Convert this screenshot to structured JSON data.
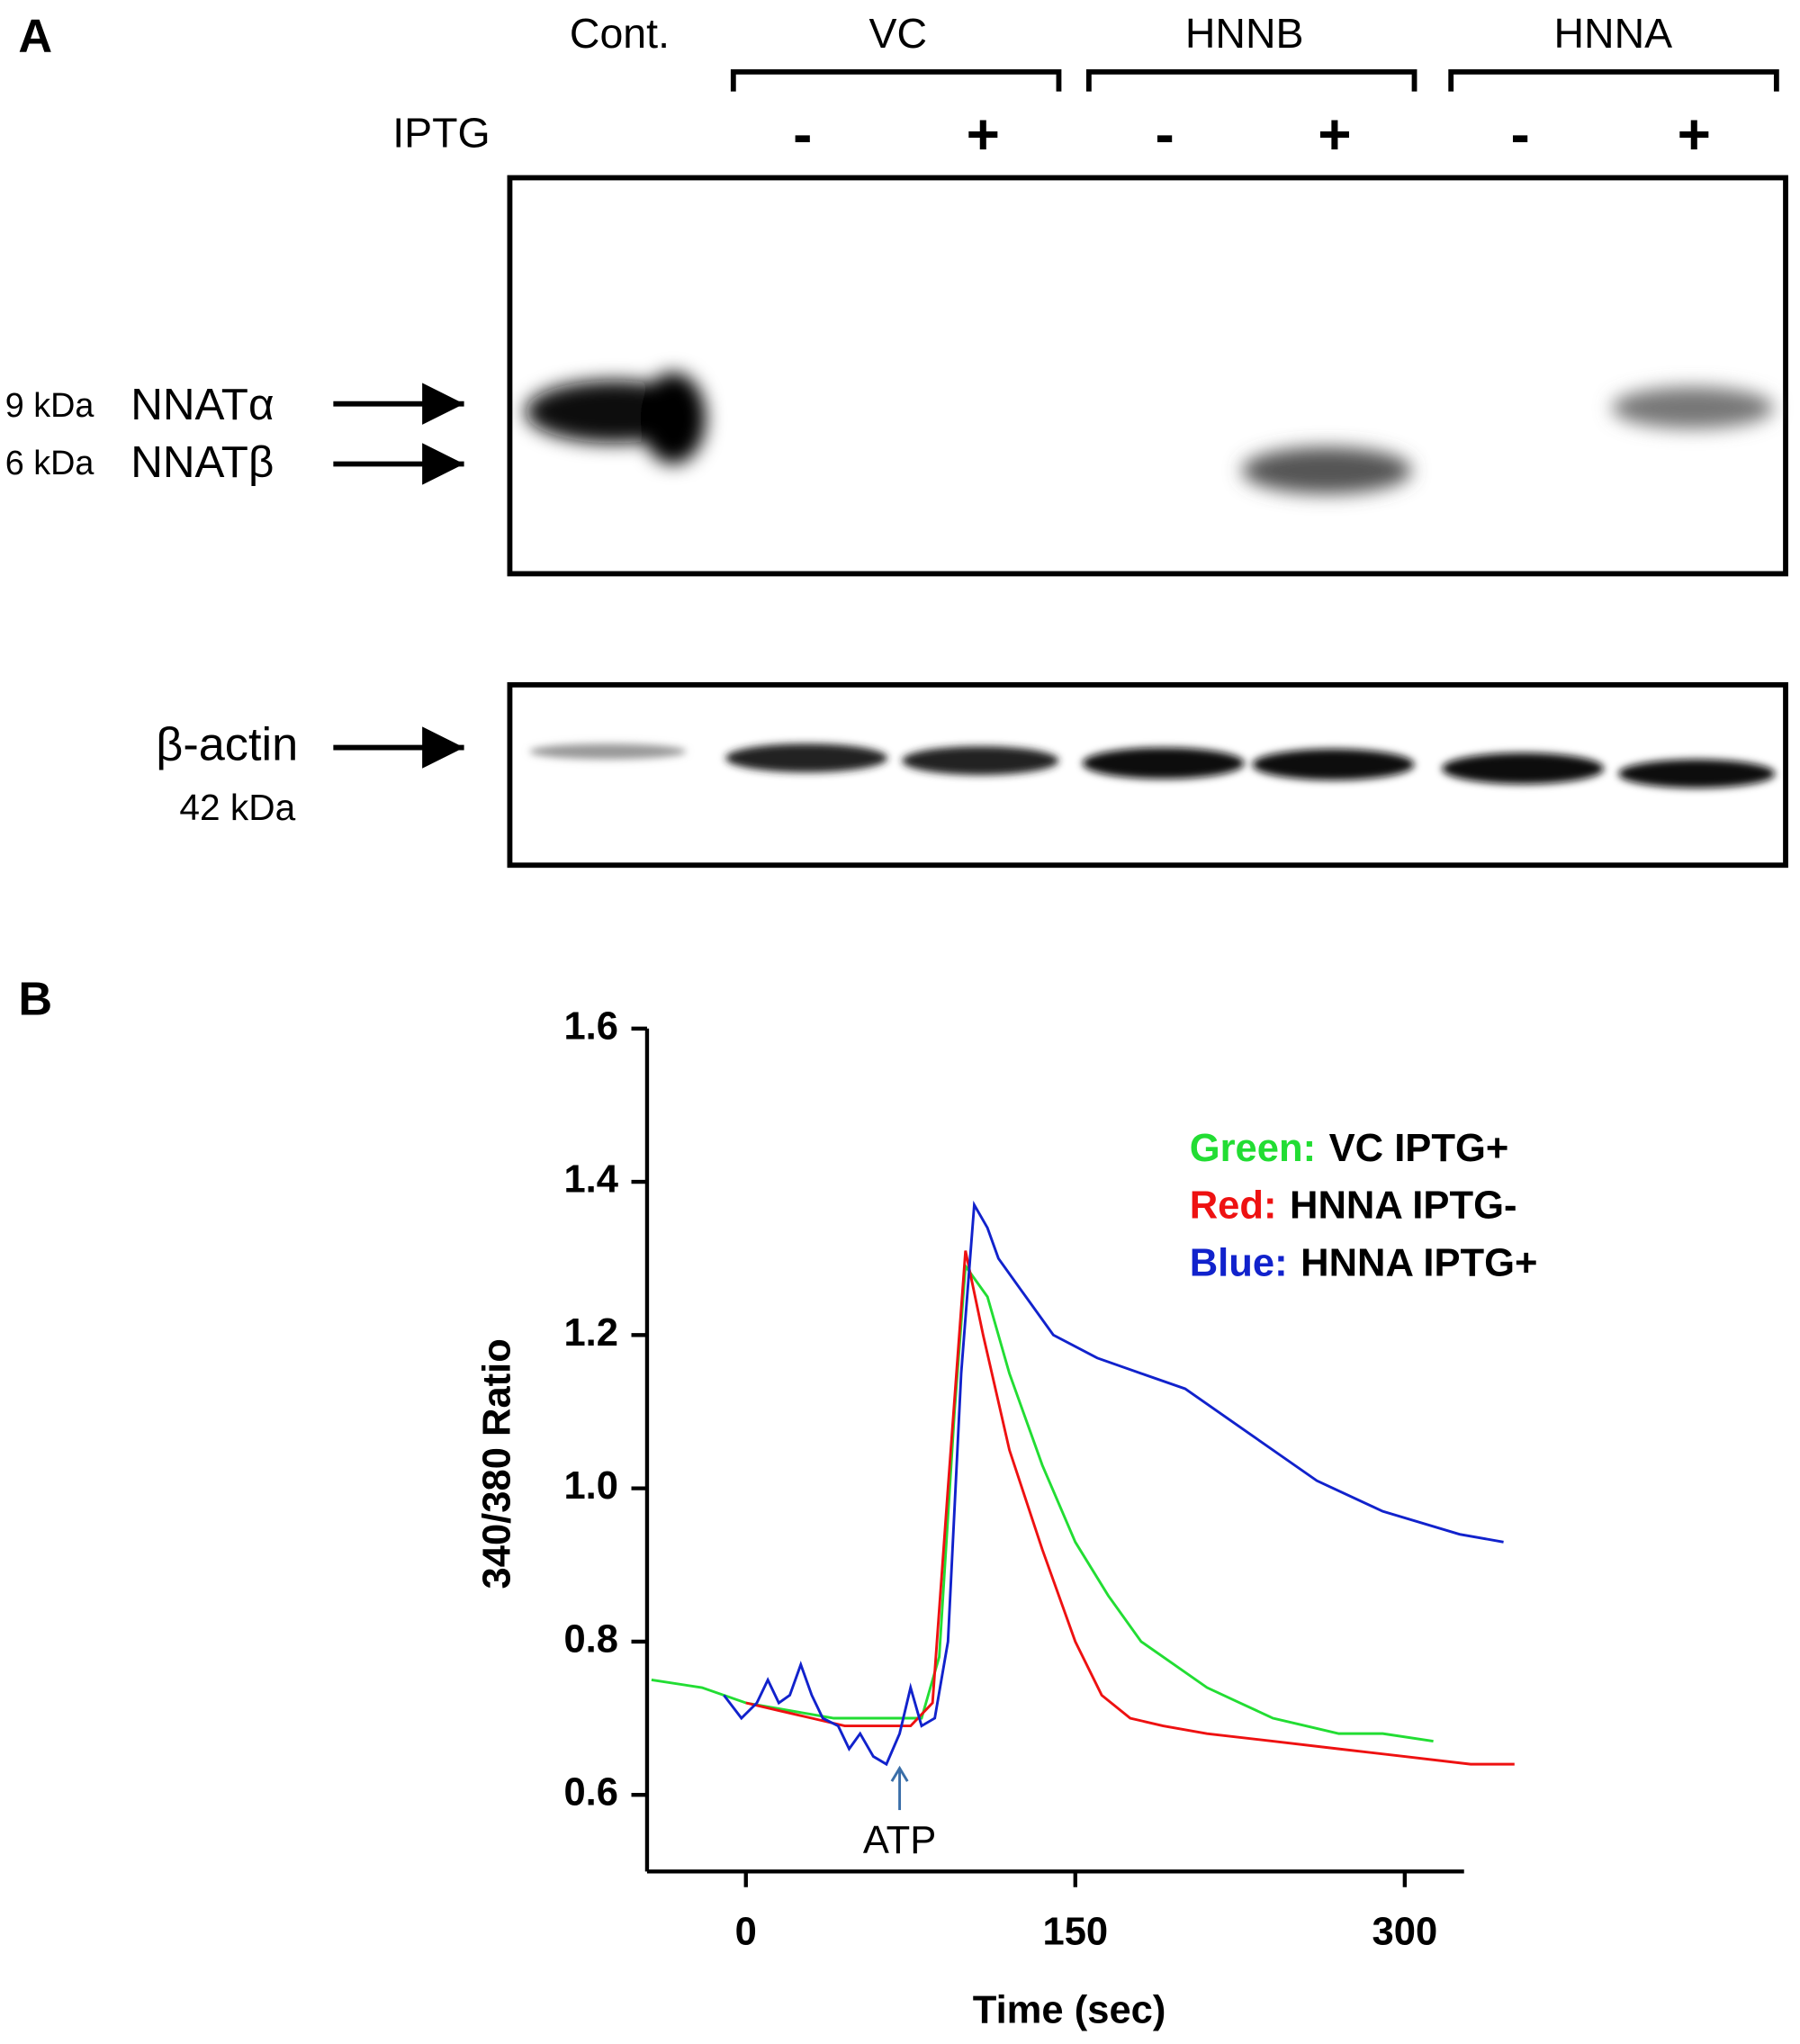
{
  "panel_a": {
    "label": "A",
    "cont": "Cont.",
    "groups": [
      "VC",
      "HNNB",
      "HNNA"
    ],
    "iptg": "IPTG",
    "signs": [
      "-",
      "+",
      "-",
      "+",
      "-",
      "+"
    ],
    "markers": [
      {
        "size": "9 kDa",
        "name": "NNATα"
      },
      {
        "size": "6 kDa",
        "name": "NNATβ"
      }
    ],
    "actin": {
      "name": "β-actin",
      "size": "42 kDa"
    }
  },
  "chart_data": {
    "type": "line",
    "panel_label": "B",
    "x_label": "Time (sec)",
    "y_label": "340/380 Ratio",
    "xlim": [
      -45,
      327
    ],
    "xticks": [
      0,
      150,
      300
    ],
    "ylim": [
      0.5,
      1.6
    ],
    "yticks": [
      0.6,
      0.8,
      {
        "value": 1,
        "label": "1.0"
      },
      1.2,
      1.4,
      1.6
    ],
    "annotation": {
      "text": "ATP",
      "x": 70
    },
    "series": [
      {
        "name": "VC IPTG+",
        "label": "Green:",
        "color": "#22dd33",
        "x": [
          -43,
          -20,
          0,
          20,
          40,
          60,
          80,
          88,
          95,
          100,
          110,
          120,
          135,
          150,
          165,
          180,
          195,
          210,
          225,
          240,
          255,
          270,
          290,
          313
        ],
        "values": [
          0.75,
          0.74,
          0.72,
          0.71,
          0.7,
          0.7,
          0.7,
          0.78,
          1.1,
          1.29,
          1.25,
          1.15,
          1.03,
          0.93,
          0.86,
          0.8,
          0.77,
          0.74,
          0.72,
          0.7,
          0.69,
          0.68,
          0.68,
          0.67
        ]
      },
      {
        "name": "HNNA IPTG-",
        "label": "Red:",
        "color": "#ee1111",
        "x": [
          0,
          15,
          30,
          45,
          60,
          75,
          85,
          92,
          100,
          108,
          120,
          135,
          150,
          162,
          175,
          190,
          210,
          240,
          270,
          300,
          330,
          350
        ],
        "values": [
          0.72,
          0.71,
          0.7,
          0.69,
          0.69,
          0.69,
          0.72,
          1.0,
          1.31,
          1.2,
          1.05,
          0.92,
          0.8,
          0.73,
          0.7,
          0.69,
          0.68,
          0.67,
          0.66,
          0.65,
          0.64,
          0.64
        ]
      },
      {
        "name": "HNNA IPTG+",
        "label": "Blue:",
        "color": "#1122cc",
        "x": [
          -10,
          -2,
          5,
          10,
          15,
          20,
          25,
          30,
          35,
          42,
          47,
          52,
          58,
          64,
          70,
          75,
          80,
          86,
          92,
          98,
          104,
          110,
          115,
          125,
          140,
          160,
          180,
          200,
          230,
          260,
          290,
          325,
          345
        ],
        "values": [
          0.73,
          0.7,
          0.72,
          0.75,
          0.72,
          0.73,
          0.77,
          0.73,
          0.7,
          0.69,
          0.66,
          0.68,
          0.65,
          0.64,
          0.68,
          0.74,
          0.69,
          0.7,
          0.8,
          1.15,
          1.37,
          1.34,
          1.3,
          1.26,
          1.2,
          1.17,
          1.15,
          1.13,
          1.07,
          1.01,
          0.97,
          0.94,
          0.93
        ]
      }
    ]
  }
}
